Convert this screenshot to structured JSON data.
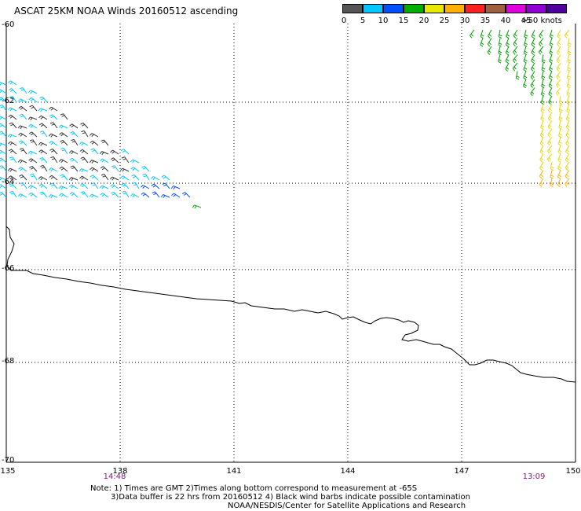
{
  "title": "ASCAT 25KM NOAA Winds 20160512 ascending",
  "legend": {
    "colors": [
      "#555555",
      "#00c8ff",
      "#0050ff",
      "#00b000",
      "#e8e800",
      "#ffb000",
      "#ff2020",
      "#a06040",
      "#e000e0",
      "#9000d0",
      "#5000a0"
    ],
    "labels": [
      "0",
      "5",
      "10",
      "15",
      "20",
      "25",
      "30",
      "35",
      "40",
      "45",
      ">50 knots"
    ]
  },
  "y_labels": [
    "-60",
    "-62",
    "-64",
    "-66",
    "-68",
    "-70"
  ],
  "x_labels": [
    "135",
    "138",
    "141",
    "144",
    "147",
    "150"
  ],
  "times": [
    "14:48",
    "13:09"
  ],
  "notes": {
    "line1": "Note: 1) Times are GMT 2)Times along bottom correspond to measurement at -65S",
    "line2": "3)Data buffer is 22 hrs from 20160512 4) Black wind barbs indicate possible contamination",
    "line3": "NOAA/NESDIS/Center for Satellite Applications and Research"
  }
}
